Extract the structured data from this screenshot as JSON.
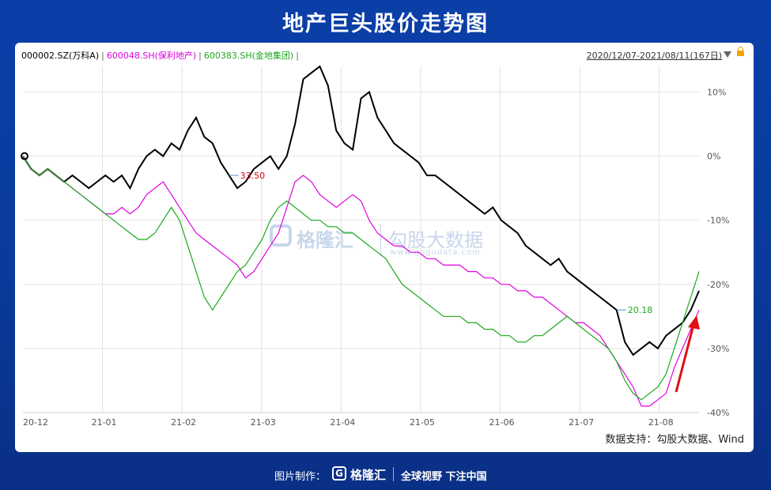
{
  "title": "地产巨头股价走势图",
  "legend": [
    {
      "label": "000002.SZ(万科A)",
      "color": "#000000"
    },
    {
      "label": "600048.SH(保利地产)",
      "color": "#e000e0"
    },
    {
      "label": "600383.SH(金地集团)",
      "color": "#1aa81a"
    }
  ],
  "separator": "|",
  "date_range": "2020/12/07-2021/08/11(167日)",
  "source": "数据支持：勾股大数据、Wind",
  "watermark": {
    "brand": "格隆汇",
    "sub": "勾股大数据",
    "url": "www.gogudata.com"
  },
  "footer": {
    "made_by": "图片制作：",
    "brand": "格隆汇",
    "slogan": "全球视野 下注中国"
  },
  "chart_data": {
    "type": "line",
    "x_ticks": [
      "20-12",
      "21-01",
      "21-02",
      "21-03",
      "21-04",
      "21-05",
      "21-06",
      "21-07",
      "21-08"
    ],
    "y_ticks": [
      "10%",
      "0%",
      "-10%",
      "-20%",
      "-30%",
      "-40%"
    ],
    "ylim": [
      -40,
      14
    ],
    "grid": true,
    "annotations": [
      {
        "text": "33.50",
        "series": 0,
        "index": 25,
        "color": "#d0021b"
      },
      {
        "text": "20.18",
        "series": 0,
        "index": 72,
        "color": "#1aa81a"
      }
    ],
    "series": [
      {
        "name": "000002.SZ(万科A)",
        "color": "#000000",
        "values": [
          0,
          -2,
          -3,
          -2,
          -3,
          -4,
          -3,
          -4,
          -5,
          -4,
          -3,
          -4,
          -3,
          -5,
          -2,
          0,
          1,
          0,
          2,
          1,
          4,
          6,
          3,
          2,
          -1,
          -3,
          -5,
          -4,
          -2,
          -1,
          0,
          -2,
          0,
          5,
          12,
          13,
          14,
          11,
          4,
          2,
          1,
          9,
          10,
          6,
          4,
          2,
          1,
          0,
          -1,
          -3,
          -3,
          -4,
          -5,
          -6,
          -7,
          -8,
          -9,
          -8,
          -10,
          -11,
          -12,
          -14,
          -15,
          -16,
          -17,
          -16,
          -18,
          -19,
          -20,
          -21,
          -22,
          -23,
          -24,
          -29,
          -31,
          -30,
          -29,
          -30,
          -28,
          -27,
          -26,
          -24,
          -21
        ]
      },
      {
        "name": "600048.SH(保利地产)",
        "color": "#e000e0",
        "values": [
          0,
          -2,
          -3,
          -2,
          -3,
          -4,
          -5,
          -6,
          -7,
          -8,
          -9,
          -9,
          -8,
          -9,
          -8,
          -6,
          -5,
          -4,
          -6,
          -8,
          -10,
          -12,
          -13,
          -14,
          -15,
          -16,
          -17,
          -19,
          -18,
          -16,
          -14,
          -12,
          -8,
          -4,
          -3,
          -4,
          -6,
          -7,
          -8,
          -7,
          -6,
          -7,
          -10,
          -12,
          -13,
          -14,
          -14,
          -15,
          -15,
          -16,
          -16,
          -17,
          -17,
          -17,
          -18,
          -18,
          -19,
          -19,
          -20,
          -20,
          -21,
          -21,
          -22,
          -22,
          -23,
          -24,
          -25,
          -26,
          -26,
          -27,
          -28,
          -30,
          -32,
          -34,
          -36,
          -39,
          -39,
          -38,
          -37,
          -33,
          -30,
          -27,
          -24
        ]
      },
      {
        "name": "600383.SH(金地集团)",
        "color": "#1aa81a",
        "values": [
          0,
          -2,
          -3,
          -2,
          -3,
          -4,
          -5,
          -6,
          -7,
          -8,
          -9,
          -10,
          -11,
          -12,
          -13,
          -13,
          -12,
          -10,
          -8,
          -10,
          -14,
          -18,
          -22,
          -24,
          -22,
          -20,
          -18,
          -17,
          -15,
          -13,
          -10,
          -8,
          -7,
          -8,
          -9,
          -10,
          -10,
          -11,
          -11,
          -12,
          -12,
          -13,
          -14,
          -15,
          -16,
          -18,
          -20,
          -21,
          -22,
          -23,
          -24,
          -25,
          -25,
          -25,
          -26,
          -26,
          -27,
          -27,
          -28,
          -28,
          -29,
          -29,
          -28,
          -28,
          -27,
          -26,
          -25,
          -26,
          -27,
          -28,
          -29,
          -30,
          -32,
          -35,
          -37,
          -38,
          -37,
          -36,
          -34,
          -30,
          -26,
          -22,
          -18
        ]
      }
    ]
  }
}
